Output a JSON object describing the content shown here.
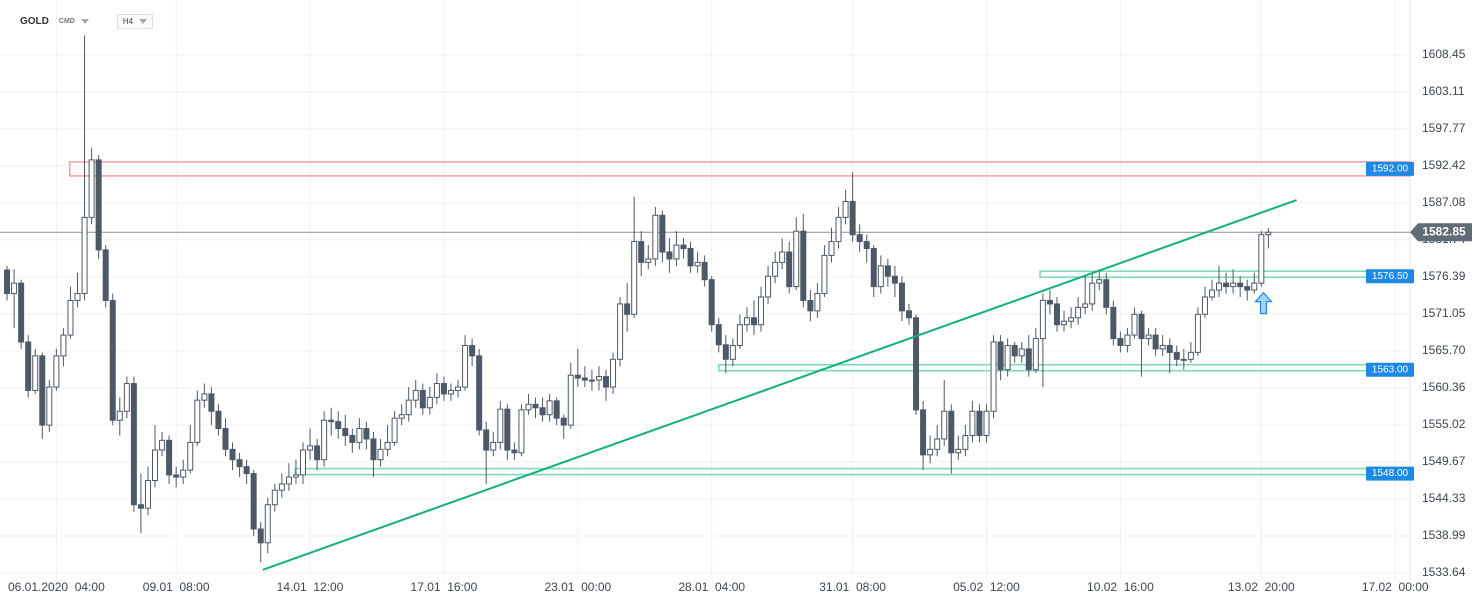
{
  "header": {
    "symbol": "GOLD",
    "market": "CMD",
    "interval": "H4"
  },
  "chart_data": {
    "type": "candlestick",
    "open": [
      1577.4,
      1574.0,
      1575.5,
      1567.0,
      1560.0,
      1565.0,
      1555.0,
      1560.5,
      1565.0,
      1568.0,
      1573.0,
      1574.0,
      1585.0,
      1593.3,
      1580.3,
      1573.0,
      1555.7,
      1557.0,
      1561.0,
      1543.5,
      1543.0,
      1547.0,
      1551.4,
      1552.8,
      1547.8,
      1547.5,
      1548.5,
      1552.5,
      1558.6,
      1559.5,
      1557.0,
      1554.5,
      1551.5,
      1550.0,
      1549.0,
      1548.0,
      1540.0,
      1538.0,
      1543.5,
      1545.6,
      1546.5,
      1547.5,
      1547.8,
      1551.4,
      1552.0,
      1550.0,
      1555.7,
      1555.5,
      1554.5,
      1553.5,
      1552.5,
      1554.5,
      1553.0,
      1550.0,
      1551.5,
      1552.5,
      1556.0,
      1556.5,
      1558.6,
      1560.0,
      1557.5,
      1559.0,
      1561.0,
      1559.5,
      1560.0,
      1560.5,
      1566.5,
      1565.0,
      1554.3,
      1551.4,
      1552.5,
      1557.3,
      1551.4,
      1551.0,
      1557.2,
      1558.0,
      1557.5,
      1556.5,
      1558.5,
      1556.0,
      1555.0,
      1562.2,
      1561.8,
      1561.5,
      1561.5,
      1562.0,
      1560.5,
      1564.5,
      1572.5,
      1571.0,
      1581.5,
      1578.5,
      1579.0,
      1585.3,
      1580.0,
      1579.0,
      1581.0,
      1580.5,
      1578.0,
      1578.5,
      1576.0,
      1569.5,
      1566.6,
      1564.5,
      1566.5,
      1569.5,
      1570.5,
      1569.5,
      1573.5,
      1576.5,
      1578.5,
      1580.0,
      1575.0,
      1583.0,
      1573.0,
      1571.5,
      1574.0,
      1579.5,
      1581.5,
      1585.0,
      1587.3,
      1582.5,
      1581.5,
      1580.5,
      1575.0,
      1578.0,
      1576.5,
      1575.5,
      1571.5,
      1570.5,
      1557.2,
      1550.7,
      1551.5,
      1553.0,
      1557.0,
      1551.0,
      1551.5,
      1553.5,
      1557.0,
      1553.5,
      1557.0,
      1567.0,
      1563.0,
      1566.5,
      1565.0,
      1566.0,
      1563.0,
      1567.5,
      1573.0,
      1572.5,
      1569.5,
      1570.0,
      1570.5,
      1572.0,
      1572.5,
      1575.5,
      1576.0,
      1572.0,
      1567.5,
      1566.5,
      1568.0,
      1571.0,
      1567.5,
      1568.0,
      1566.0,
      1566.5,
      1565.5,
      1564.5,
      1564.5,
      1565.5,
      1571.0,
      1573.5,
      1574.5,
      1575.5,
      1575.0,
      1575.5,
      1575.0,
      1574.5,
      1575.5,
      1582.5
    ],
    "high": [
      1578.0,
      1577.5,
      1576.0,
      1568.0,
      1566.0,
      1565.5,
      1561.5,
      1566.0,
      1569.0,
      1575.0,
      1577.0,
      1611.3,
      1595.0,
      1594.0,
      1581.0,
      1574.0,
      1559.0,
      1562.0,
      1562.0,
      1548.0,
      1549.0,
      1555.0,
      1554.0,
      1553.5,
      1549.0,
      1550.0,
      1555.0,
      1560.0,
      1561.0,
      1560.5,
      1558.0,
      1556.0,
      1552.5,
      1551.0,
      1550.0,
      1548.5,
      1541.0,
      1544.5,
      1546.5,
      1548.0,
      1549.5,
      1550.0,
      1552.5,
      1554.5,
      1553.0,
      1557.0,
      1557.5,
      1557.0,
      1556.5,
      1554.5,
      1556.0,
      1555.5,
      1554.0,
      1553.0,
      1555.0,
      1557.0,
      1558.0,
      1560.5,
      1561.5,
      1561.0,
      1560.5,
      1562.5,
      1562.0,
      1561.0,
      1561.5,
      1568.0,
      1567.5,
      1566.0,
      1555.5,
      1554.0,
      1558.5,
      1558.0,
      1552.5,
      1558.0,
      1559.5,
      1559.0,
      1559.0,
      1559.5,
      1559.0,
      1556.5,
      1564.0,
      1566.0,
      1563.5,
      1563.0,
      1563.5,
      1563.0,
      1565.5,
      1573.5,
      1575.5,
      1588.0,
      1583.0,
      1581.0,
      1586.5,
      1586.0,
      1582.0,
      1583.0,
      1582.0,
      1581.5,
      1580.0,
      1579.5,
      1576.5,
      1570.5,
      1568.0,
      1567.5,
      1571.0,
      1572.0,
      1573.0,
      1575.0,
      1578.0,
      1580.0,
      1582.0,
      1581.5,
      1585.0,
      1585.5,
      1574.5,
      1575.5,
      1581.0,
      1583.5,
      1586.5,
      1589.0,
      1591.5,
      1584.0,
      1582.5,
      1581.0,
      1579.5,
      1579.0,
      1578.0,
      1576.5,
      1572.5,
      1571.0,
      1558.5,
      1553.5,
      1555.0,
      1561.5,
      1558.0,
      1553.5,
      1555.0,
      1558.5,
      1558.0,
      1558.0,
      1568.0,
      1568.0,
      1567.5,
      1567.0,
      1567.0,
      1568.0,
      1569.0,
      1574.0,
      1574.5,
      1573.5,
      1571.5,
      1572.0,
      1573.5,
      1576.5,
      1577.0,
      1577.5,
      1577.0,
      1573.0,
      1568.5,
      1569.0,
      1572.0,
      1571.5,
      1569.0,
      1569.0,
      1568.0,
      1567.5,
      1566.5,
      1566.0,
      1567.0,
      1572.0,
      1575.0,
      1576.0,
      1578.0,
      1577.0,
      1577.5,
      1576.5,
      1576.0,
      1577.0,
      1583.0,
      1583.5
    ],
    "low": [
      1573.0,
      1569.0,
      1566.0,
      1559.0,
      1559.5,
      1553.0,
      1554.0,
      1560.0,
      1563.5,
      1567.5,
      1572.0,
      1573.0,
      1584.0,
      1579.0,
      1572.0,
      1555.0,
      1553.5,
      1556.0,
      1542.5,
      1539.4,
      1542.0,
      1546.0,
      1550.5,
      1546.5,
      1546.0,
      1546.5,
      1548.0,
      1552.0,
      1557.5,
      1555.0,
      1553.5,
      1550.5,
      1548.5,
      1547.5,
      1546.5,
      1539.0,
      1535.2,
      1536.5,
      1542.5,
      1544.5,
      1545.5,
      1546.5,
      1546.5,
      1550.0,
      1548.5,
      1549.0,
      1553.5,
      1553.0,
      1552.0,
      1551.0,
      1551.5,
      1551.5,
      1547.5,
      1549.0,
      1550.5,
      1552.0,
      1555.0,
      1555.5,
      1557.5,
      1556.5,
      1556.5,
      1558.0,
      1558.5,
      1558.5,
      1559.0,
      1560.0,
      1563.5,
      1553.5,
      1546.5,
      1550.5,
      1551.5,
      1550.0,
      1550.0,
      1550.5,
      1556.5,
      1556.0,
      1555.5,
      1555.5,
      1555.0,
      1553.0,
      1554.5,
      1560.5,
      1560.5,
      1560.0,
      1560.0,
      1558.5,
      1559.5,
      1563.5,
      1568.5,
      1570.5,
      1576.5,
      1577.5,
      1578.0,
      1578.5,
      1577.0,
      1578.0,
      1579.0,
      1577.0,
      1577.0,
      1575.0,
      1568.5,
      1565.5,
      1562.5,
      1563.5,
      1566.0,
      1568.5,
      1568.0,
      1568.5,
      1572.5,
      1575.5,
      1577.5,
      1574.0,
      1574.5,
      1572.0,
      1570.0,
      1570.5,
      1573.5,
      1578.5,
      1580.5,
      1584.0,
      1581.5,
      1580.0,
      1578.5,
      1573.5,
      1574.0,
      1575.0,
      1573.5,
      1570.0,
      1569.5,
      1556.5,
      1548.5,
      1549.5,
      1550.5,
      1552.0,
      1548.0,
      1550.0,
      1550.5,
      1552.5,
      1552.5,
      1552.5,
      1556.0,
      1561.5,
      1562.0,
      1564.0,
      1564.0,
      1562.0,
      1562.5,
      1560.5,
      1571.0,
      1568.5,
      1568.5,
      1569.0,
      1569.5,
      1571.0,
      1571.5,
      1574.5,
      1571.0,
      1566.5,
      1565.5,
      1565.5,
      1567.5,
      1562.0,
      1566.5,
      1565.0,
      1565.0,
      1562.5,
      1563.5,
      1563.0,
      1564.0,
      1565.0,
      1570.5,
      1573.0,
      1573.5,
      1574.0,
      1574.0,
      1573.5,
      1573.0,
      1574.0,
      1575.0,
      1580.5
    ],
    "close": [
      1574.0,
      1575.5,
      1567.0,
      1560.0,
      1565.0,
      1555.0,
      1560.5,
      1565.0,
      1568.0,
      1573.0,
      1574.0,
      1585.0,
      1593.3,
      1580.3,
      1573.0,
      1555.7,
      1557.0,
      1561.0,
      1543.5,
      1543.0,
      1547.0,
      1551.4,
      1552.8,
      1547.8,
      1547.5,
      1548.5,
      1552.5,
      1558.6,
      1559.5,
      1557.0,
      1554.5,
      1551.5,
      1550.0,
      1549.0,
      1548.0,
      1540.0,
      1538.0,
      1543.5,
      1545.6,
      1546.5,
      1547.5,
      1547.8,
      1551.4,
      1552.0,
      1550.0,
      1555.7,
      1555.5,
      1554.5,
      1553.5,
      1552.5,
      1554.5,
      1553.0,
      1550.0,
      1551.5,
      1552.5,
      1556.0,
      1556.5,
      1558.6,
      1560.0,
      1557.5,
      1559.0,
      1561.0,
      1559.5,
      1560.0,
      1560.5,
      1566.5,
      1565.0,
      1554.3,
      1551.4,
      1552.5,
      1557.3,
      1551.4,
      1551.0,
      1557.2,
      1558.0,
      1557.5,
      1556.5,
      1558.5,
      1556.0,
      1555.0,
      1562.2,
      1561.8,
      1561.5,
      1561.5,
      1562.0,
      1560.5,
      1564.5,
      1572.5,
      1571.0,
      1581.5,
      1578.5,
      1579.0,
      1585.3,
      1580.0,
      1579.0,
      1581.0,
      1580.5,
      1578.0,
      1578.5,
      1576.0,
      1569.5,
      1566.6,
      1564.5,
      1566.5,
      1569.5,
      1570.5,
      1569.5,
      1573.5,
      1576.5,
      1578.5,
      1580.0,
      1575.0,
      1583.0,
      1573.0,
      1571.5,
      1574.0,
      1579.5,
      1581.5,
      1585.0,
      1587.3,
      1582.5,
      1581.5,
      1580.5,
      1575.0,
      1578.0,
      1576.5,
      1575.5,
      1571.5,
      1570.5,
      1557.2,
      1550.7,
      1551.5,
      1553.0,
      1557.0,
      1551.0,
      1551.5,
      1553.5,
      1557.0,
      1553.5,
      1557.0,
      1567.0,
      1563.0,
      1566.5,
      1565.0,
      1566.0,
      1563.0,
      1567.5,
      1573.0,
      1572.5,
      1569.5,
      1570.0,
      1570.5,
      1572.0,
      1572.5,
      1575.5,
      1576.0,
      1572.0,
      1567.5,
      1566.5,
      1568.0,
      1571.0,
      1567.5,
      1568.0,
      1566.0,
      1566.5,
      1565.5,
      1564.5,
      1564.5,
      1565.5,
      1571.0,
      1573.5,
      1574.5,
      1575.5,
      1575.0,
      1575.5,
      1575.0,
      1574.5,
      1575.5,
      1582.5,
      1582.85
    ],
    "xlim": [
      -1,
      199.1
    ],
    "xticks": [
      {
        "value": 7,
        "label": "06.01.2020  04:00"
      },
      {
        "value": 24,
        "label": "09.01  08:00"
      },
      {
        "value": 43,
        "label": "14.01  12:00"
      },
      {
        "value": 62,
        "label": "17.01  16:00"
      },
      {
        "value": 81,
        "label": "23.01  00:00"
      },
      {
        "value": 100,
        "label": "28.01  04:00"
      },
      {
        "value": 120,
        "label": "31.01  08:00"
      },
      {
        "value": 139,
        "label": "05.02  12:00"
      },
      {
        "value": 158,
        "label": "10.02  16:00"
      },
      {
        "value": 178,
        "label": "13.02  20:00"
      },
      {
        "value": 197,
        "label": "17.02  00:00"
      }
    ],
    "ylim": [
      1532.63,
      1616.39
    ],
    "yticks": [
      1608.45,
      1603.11,
      1597.77,
      1592.42,
      1587.08,
      1581.74,
      1576.39,
      1571.05,
      {
        "value": 1565.7,
        "label": "1565.70"
      },
      1560.36,
      1555.02,
      1549.67,
      1544.33,
      1538.99,
      1533.64
    ],
    "grid": true,
    "colors": {
      "up": "#ffffff",
      "down": "#4d5966",
      "outline": "#4d5966",
      "trend": "#13b07a",
      "support": "#7ed9b8",
      "resistance": "#f4a3a3",
      "badge": "#1e88e5",
      "price": "#5f6b76"
    },
    "zones": [
      {
        "level": {
          "value": 1592,
          "label": "1592.00"
        },
        "from": 8.9,
        "kind": "resistance"
      },
      {
        "level": {
          "value": 1576.5,
          "label": "1576.50"
        },
        "from": 146.6,
        "kind": "support"
      },
      {
        "level": {
          "value": 1563,
          "label": "1563.00"
        },
        "from": 101,
        "kind": "support"
      },
      {
        "level": {
          "value": 1548,
          "label": "1548.00"
        },
        "from": 40.9,
        "kind": "support"
      }
    ],
    "trendline": {
      "x": [
        36.3,
        183
      ],
      "y": [
        1534.1,
        1587.5
      ]
    },
    "current_price": 1582.85
  }
}
